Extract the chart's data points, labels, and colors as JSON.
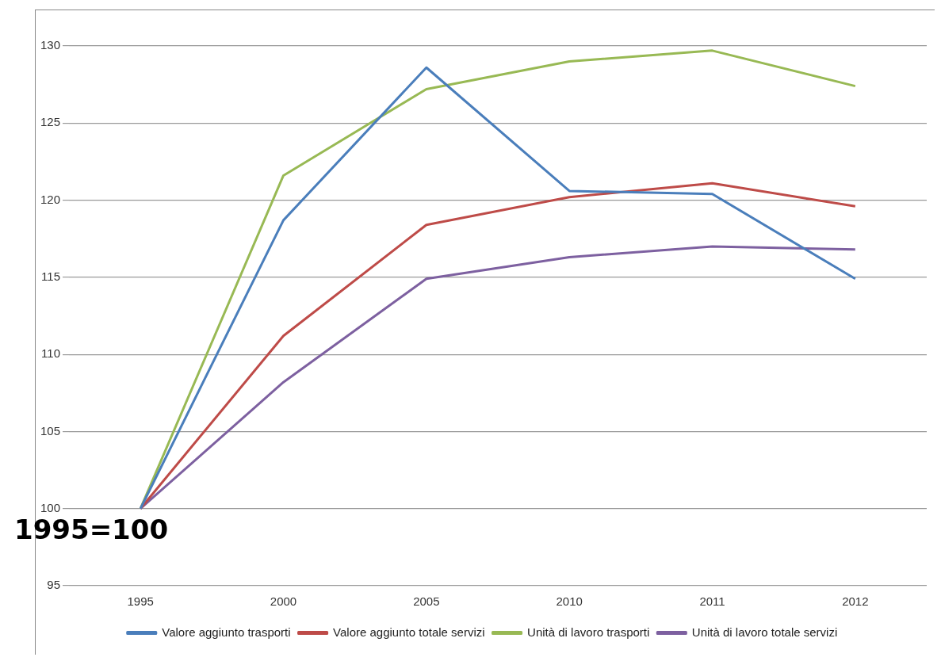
{
  "chart_data": {
    "type": "line",
    "categories": [
      "1995",
      "2000",
      "2005",
      "2010",
      "2011",
      "2012"
    ],
    "series": [
      {
        "name": "Valore aggiunto trasporti",
        "color": "#4a7ebb",
        "values": [
          100,
          118.7,
          128.6,
          120.6,
          120.4,
          114.9
        ]
      },
      {
        "name": "Valore aggiunto totale servizi",
        "color": "#be4b48",
        "values": [
          100,
          111.2,
          118.4,
          120.2,
          121.1,
          119.6
        ]
      },
      {
        "name": "Unità di lavoro trasporti",
        "color": "#98b954",
        "values": [
          100,
          121.6,
          127.2,
          129.0,
          129.7,
          127.4
        ]
      },
      {
        "name": "Unità di lavoro totale servizi",
        "color": "#7d60a0",
        "values": [
          100,
          108.2,
          114.9,
          116.3,
          117.0,
          116.8
        ]
      }
    ],
    "ylim": [
      95,
      130
    ],
    "yticks": [
      95,
      100,
      105,
      110,
      115,
      120,
      125,
      130
    ],
    "grid": "y",
    "legend": "bottom",
    "marker": "none",
    "line_style": "solid",
    "annotations": [
      "1995=100"
    ]
  }
}
